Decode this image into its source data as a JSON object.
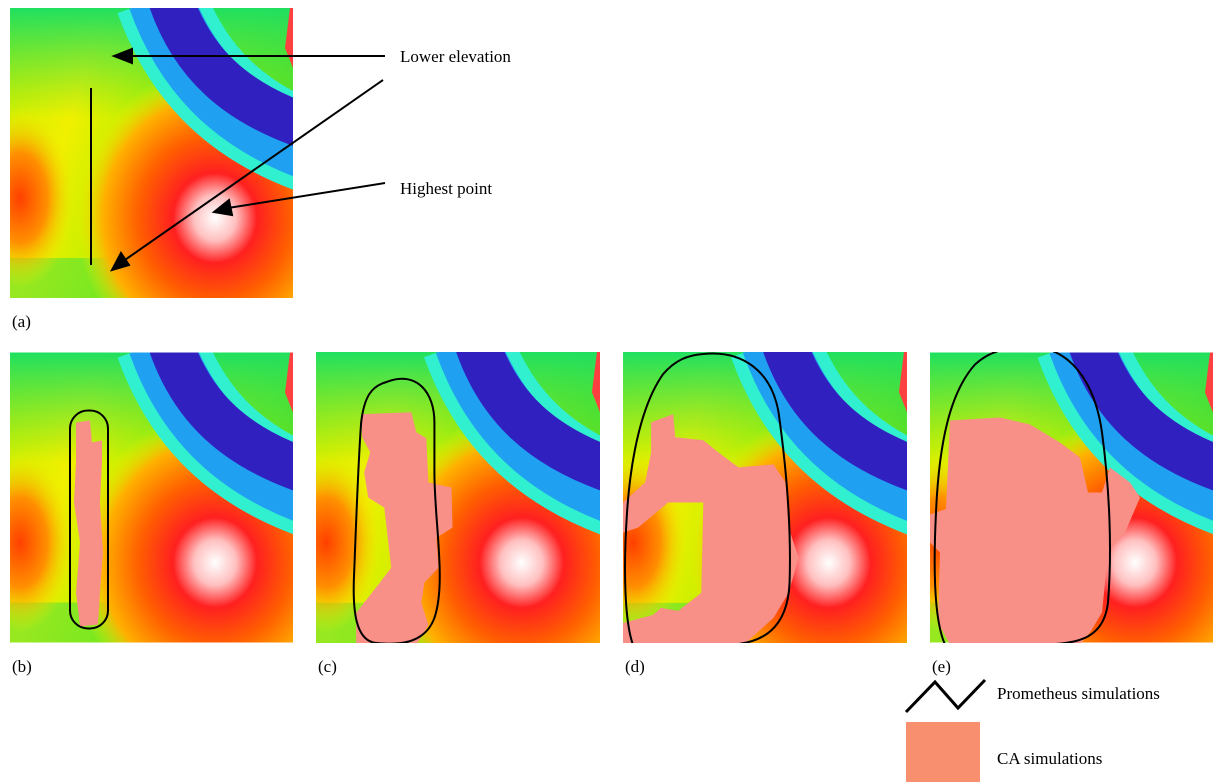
{
  "annotations": {
    "lower_elevation": "Lower elevation",
    "highest_point": "Highest point"
  },
  "panels": [
    {
      "label": "(a)"
    },
    {
      "label": "(b)"
    },
    {
      "label": "(c)"
    },
    {
      "label": "(d)"
    },
    {
      "label": "(e)"
    }
  ],
  "legend": {
    "prometheus": "Prometheus simulations",
    "ca": "CA simulations"
  }
}
